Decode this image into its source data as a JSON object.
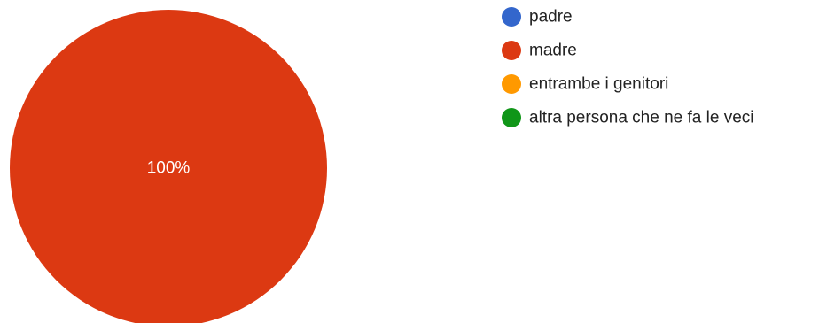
{
  "chart_data": {
    "type": "pie",
    "categories": [
      "padre",
      "madre",
      "entrambe i genitori",
      "altra persona che ne fa le veci"
    ],
    "values": [
      0,
      100,
      0,
      0
    ],
    "colors": [
      "#3366cc",
      "#dc3912",
      "#ff9900",
      "#109618"
    ],
    "slice_labels": [
      "",
      "100%",
      "",
      ""
    ],
    "legend_position": "right"
  }
}
